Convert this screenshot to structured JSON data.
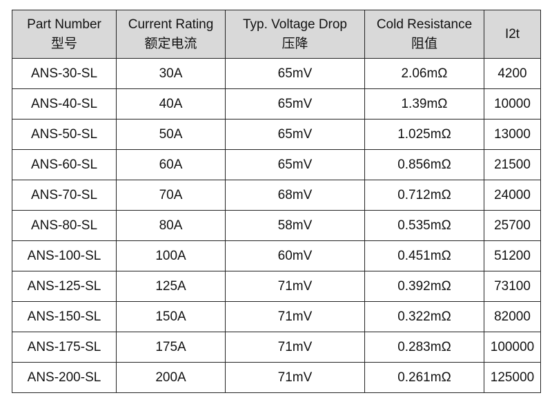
{
  "table": {
    "columns": [
      {
        "en": "Part Number",
        "zh": "型号"
      },
      {
        "en": "Current Rating",
        "zh": "额定电流"
      },
      {
        "en": "Typ. Voltage Drop",
        "zh": "压降"
      },
      {
        "en": "Cold Resistance",
        "zh": "阻值"
      },
      {
        "en": "I2t"
      }
    ],
    "rows": [
      [
        "ANS-30-SL",
        "30A",
        "65mV",
        "2.06mΩ",
        "4200"
      ],
      [
        "ANS-40-SL",
        "40A",
        "65mV",
        "1.39mΩ",
        "10000"
      ],
      [
        "ANS-50-SL",
        "50A",
        "65mV",
        "1.025mΩ",
        "13000"
      ],
      [
        "ANS-60-SL",
        "60A",
        "65mV",
        "0.856mΩ",
        "21500"
      ],
      [
        "ANS-70-SL",
        "70A",
        "68mV",
        "0.712mΩ",
        "24000"
      ],
      [
        "ANS-80-SL",
        "80A",
        "58mV",
        "0.535mΩ",
        "25700"
      ],
      [
        "ANS-100-SL",
        "100A",
        "60mV",
        "0.451mΩ",
        "51200"
      ],
      [
        "ANS-125-SL",
        "125A",
        "71mV",
        "0.392mΩ",
        "73100"
      ],
      [
        "ANS-150-SL",
        "150A",
        "71mV",
        "0.322mΩ",
        "82000"
      ],
      [
        "ANS-175-SL",
        "175A",
        "71mV",
        "0.283mΩ",
        "100000"
      ],
      [
        "ANS-200-SL",
        "200A",
        "71mV",
        "0.261mΩ",
        "125000"
      ]
    ]
  }
}
